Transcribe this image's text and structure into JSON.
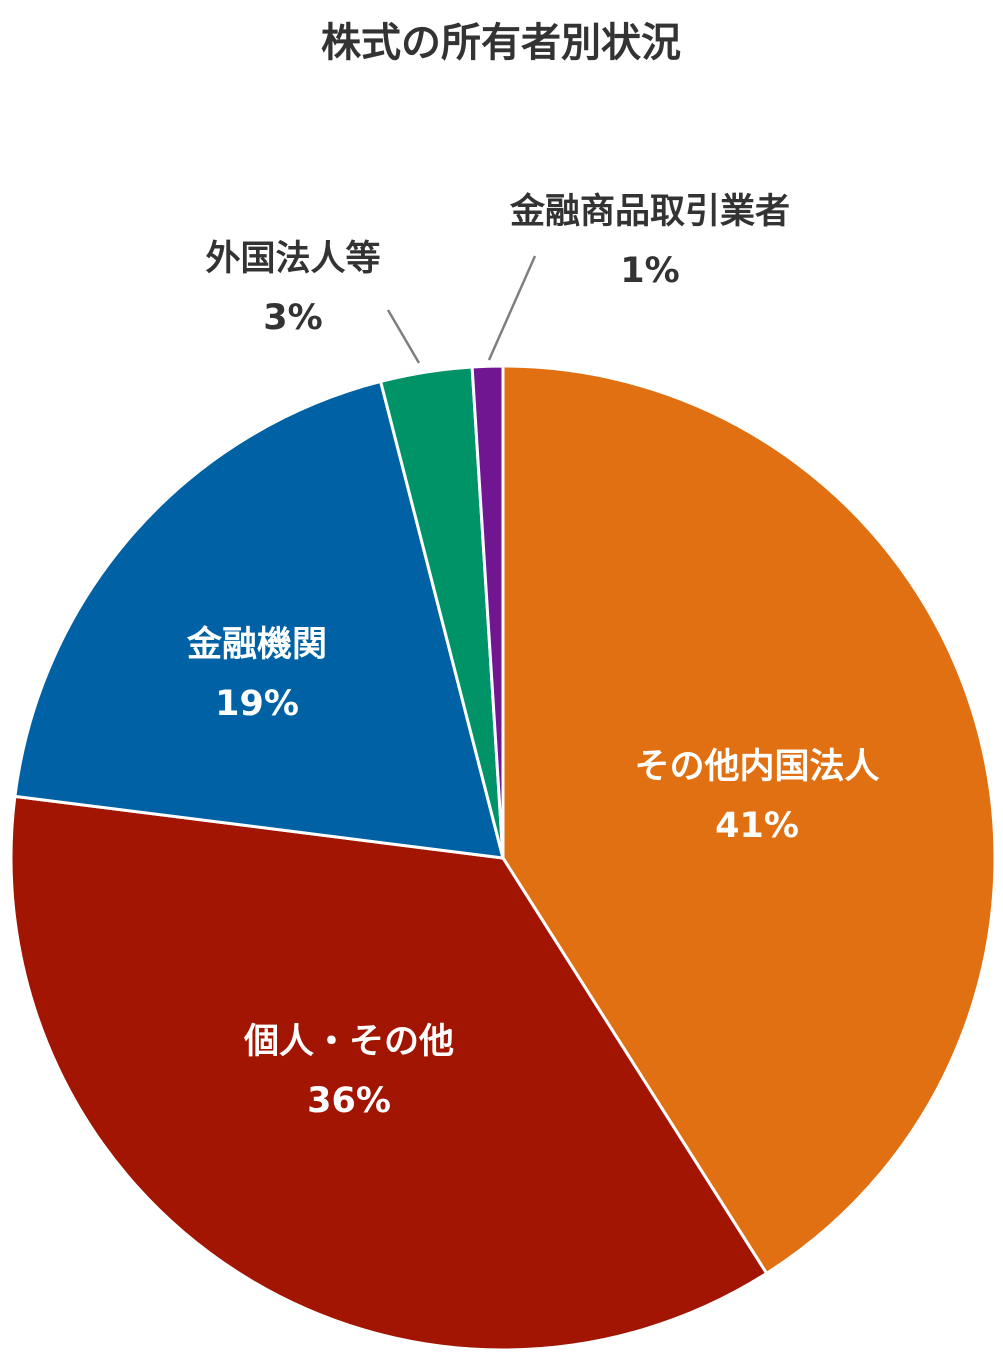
{
  "chart_data": {
    "type": "pie",
    "title": "株式の所有者別状況",
    "start_angle_deg": 0,
    "direction": "clockwise",
    "slices": [
      {
        "label": "その他内国法人",
        "value": 41,
        "value_label": "41%",
        "color": "#E07012",
        "label_placement": "inside"
      },
      {
        "label": "個人・その他",
        "value": 36,
        "value_label": "36%",
        "color": "#A21502",
        "label_placement": "inside"
      },
      {
        "label": "金融機関",
        "value": 19,
        "value_label": "19%",
        "color": "#0061A4",
        "label_placement": "inside"
      },
      {
        "label": "外国法人等",
        "value": 3,
        "value_label": "3%",
        "color": "#009367",
        "label_placement": "outside"
      },
      {
        "label": "金融商品取引業者",
        "value": 1,
        "value_label": "1%",
        "color": "#701690",
        "label_placement": "outside"
      }
    ],
    "slice_border_color": "#ffffff",
    "leader_line_color": "#7f7f7f"
  }
}
